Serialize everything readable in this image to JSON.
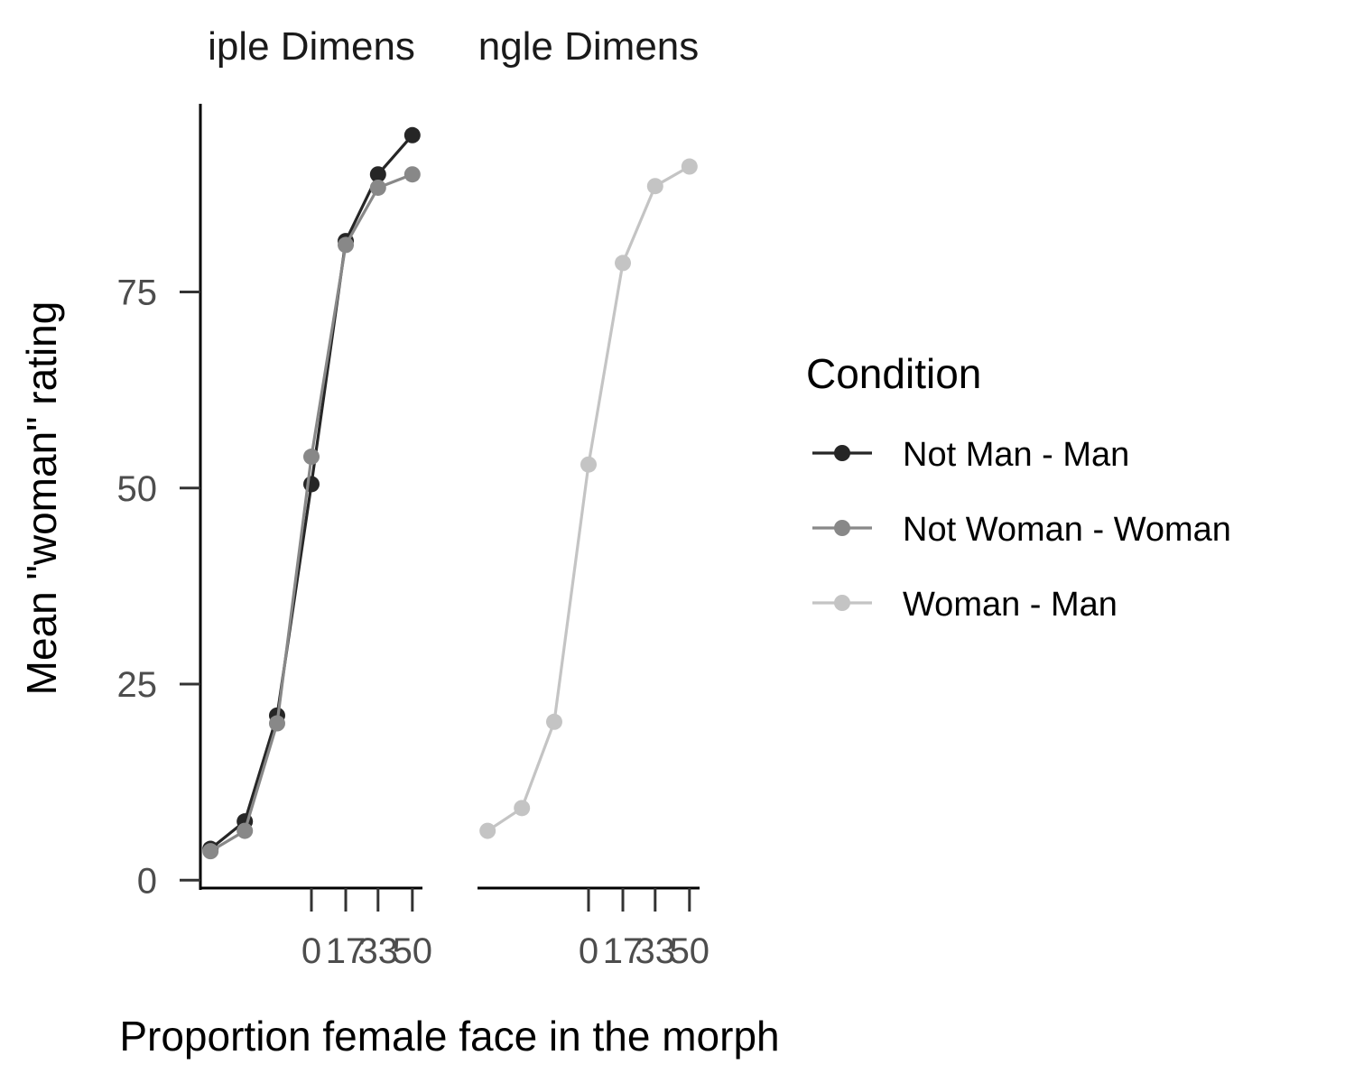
{
  "chart_data": {
    "type": "line",
    "xlabel": "Proportion female face in the morph",
    "ylabel": "Mean \"woman\" rating",
    "x_tick_labels": [
      "0",
      "17",
      "33",
      "50"
    ],
    "x_ticks": [
      0,
      17,
      33,
      50
    ],
    "x": [
      -50,
      -33,
      -17,
      0,
      17,
      33,
      50
    ],
    "xlim": [
      -55,
      55
    ],
    "y_ticks": [
      0,
      25,
      50,
      75
    ],
    "ylim": [
      -1,
      99
    ],
    "panels": [
      {
        "strip_label": "iple Dimens",
        "series": [
          {
            "name": "Not Man - Man",
            "color": "#262626",
            "values": [
              4,
              7.5,
              21,
              50.5,
              81.5,
              90,
              95
            ]
          },
          {
            "name": "Not Woman - Woman",
            "color": "#888888",
            "values": [
              3.7,
              6.3,
              20,
              54,
              81,
              88.3,
              90
            ]
          }
        ]
      },
      {
        "strip_label": "ngle Dimens",
        "series": [
          {
            "name": "Woman - Man",
            "color": "#c4c4c4",
            "values": [
              6.3,
              9.2,
              20.2,
              53,
              78.7,
              88.5,
              91
            ]
          }
        ]
      }
    ],
    "legend": {
      "title": "Condition",
      "position": "right",
      "entries": [
        {
          "label": "Not Man - Man",
          "color": "#262626"
        },
        {
          "label": "Not Woman - Woman",
          "color": "#888888"
        },
        {
          "label": "Woman - Man",
          "color": "#c4c4c4"
        }
      ]
    },
    "grid": false
  }
}
